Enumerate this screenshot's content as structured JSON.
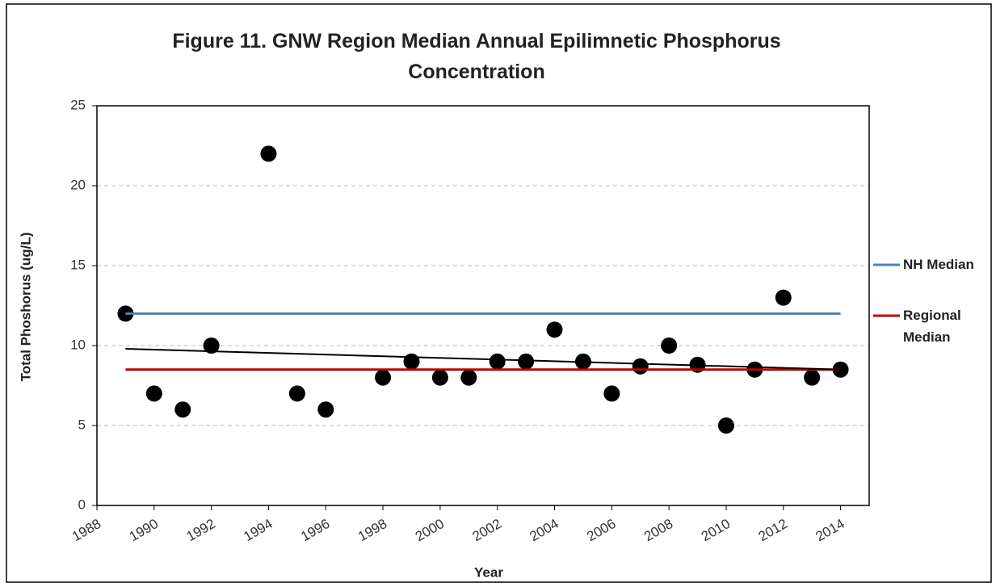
{
  "chart_data": {
    "type": "scatter",
    "title": "Figure 11. GNW Region Median Annual Epilimnetic Phosphorus Concentration",
    "x_label": "Year",
    "y_label": "Total Phoshorus (ug/L)",
    "xlim": [
      1988,
      2015
    ],
    "xticks": [
      1988,
      1990,
      1992,
      1994,
      1996,
      1998,
      2000,
      2002,
      2004,
      2006,
      2008,
      2010,
      2012,
      2014
    ],
    "ylim": [
      0,
      25
    ],
    "yticks": [
      0,
      5,
      10,
      15,
      20,
      25
    ],
    "grid": true,
    "series": [
      {
        "style": "marker",
        "color": "#000000",
        "x": [
          1989,
          1990,
          1991,
          1992,
          1994,
          1995,
          1996,
          1998,
          1999,
          2000,
          2001,
          2002,
          2003,
          2004,
          2005,
          2006,
          2007,
          2008,
          2009,
          2010,
          2011,
          2012,
          2013,
          2014
        ],
        "values": [
          12,
          7,
          6,
          10,
          22,
          7,
          6,
          8,
          9,
          8,
          8,
          9,
          9,
          11,
          9,
          7,
          8.7,
          10,
          8.8,
          5,
          8.5,
          13,
          8,
          8.5
        ]
      },
      {
        "name": "NH Median",
        "style": "line",
        "color": "#4f81bd",
        "x": [
          1989,
          2014
        ],
        "values": [
          12,
          12
        ]
      },
      {
        "name": "Regional Median",
        "style": "line",
        "color": "#c00000",
        "x": [
          1989,
          2014
        ],
        "values": [
          8.5,
          8.5
        ]
      },
      {
        "style": "trend",
        "color": "#000000",
        "x": [
          1989,
          2014
        ],
        "values": [
          9.8,
          8.5
        ]
      }
    ]
  }
}
